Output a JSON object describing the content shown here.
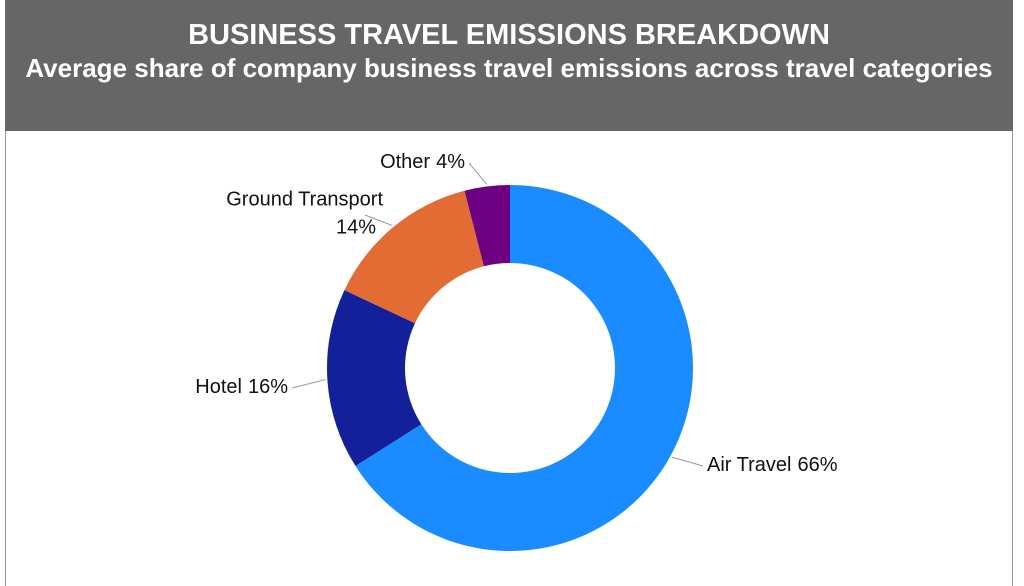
{
  "chart_data": {
    "type": "donut",
    "title": "BUSINESS TRAVEL EMISSIONS BREAKDOWN",
    "subtitle": "Average share of company business travel emissions across travel categories",
    "categories": [
      "Air Travel",
      "Hotel",
      "Ground Transport",
      "Other"
    ],
    "values": [
      66,
      16,
      14,
      4
    ],
    "value_labels": [
      "66%",
      "16%",
      "14%",
      "4%"
    ],
    "colors": [
      "#1a8cff",
      "#14209a",
      "#e36c35",
      "#6c0080"
    ]
  }
}
